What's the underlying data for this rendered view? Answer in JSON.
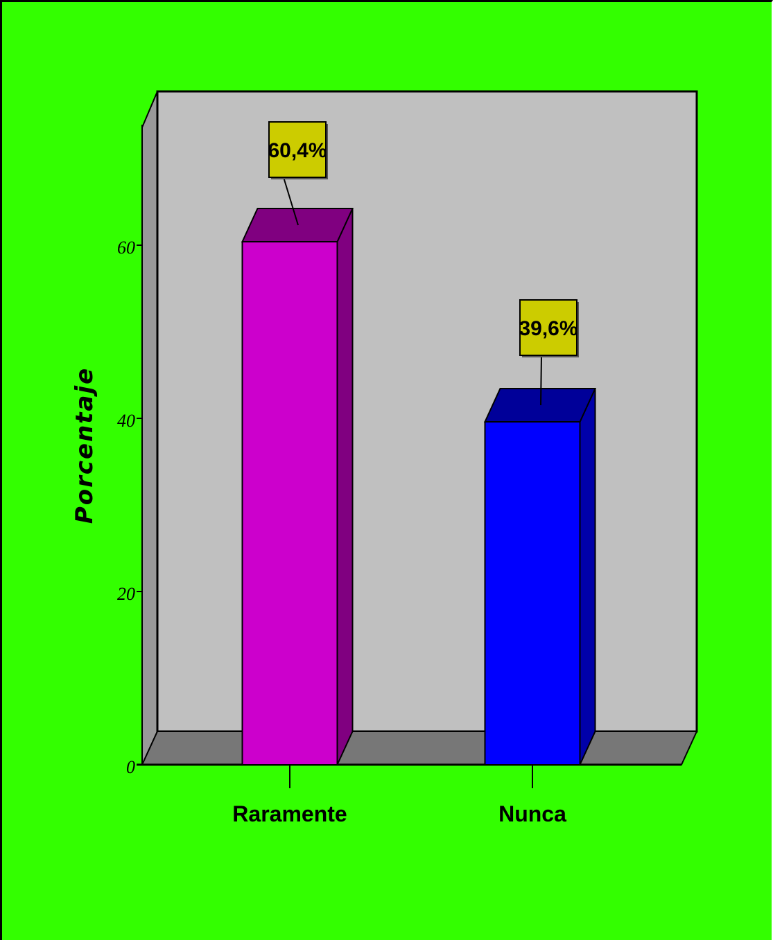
{
  "chart_data": {
    "type": "bar",
    "categories": [
      "Raramente",
      "Nunca"
    ],
    "values": [
      60.4,
      39.6
    ],
    "data_labels": [
      "60,4%",
      "39,6%"
    ],
    "ylabel": "Porcentaje",
    "xlabel": "",
    "title": "",
    "ylim": [
      0,
      60
    ],
    "yticks": [
      0,
      20,
      40,
      60
    ],
    "grid": false,
    "three_d": true,
    "colors": {
      "background": "#33ff00",
      "wall": "#c0c0c0",
      "floor": "#777777",
      "side_wall": "#999999",
      "label_box": "#cccc00",
      "bars": [
        {
          "front": "#cc00cc",
          "top": "#800080",
          "side": "#800080"
        },
        {
          "front": "#0000ff",
          "top": "#000099",
          "side": "#0000aa"
        }
      ]
    }
  }
}
